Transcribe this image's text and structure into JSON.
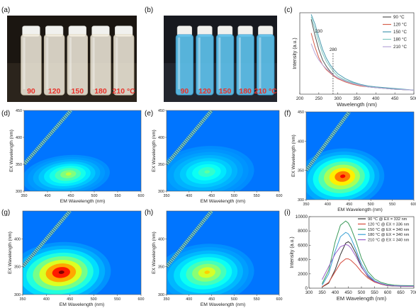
{
  "panel_labels": [
    "(a)",
    "(b)",
    "(c)",
    "(d)",
    "(e)",
    "(f)",
    "(g)",
    "(h)",
    "(i)"
  ],
  "photo_a": {
    "vial_labels": [
      "90",
      "120",
      "150",
      "180",
      "210 °C"
    ],
    "label_color": "#e8322a",
    "liquid_color": "#efe4cf",
    "background_color": "#1b1611"
  },
  "photo_b": {
    "vial_labels": [
      "90",
      "120",
      "150",
      "180",
      "210 °C"
    ],
    "label_color": "#e8322a",
    "liquid_color": "#41b6ea",
    "background_color": "#17191f"
  },
  "chart_data": [
    {
      "id": "c",
      "type": "line",
      "xlabel": "Wavelength (nm)",
      "ylabel": "Intensity (a.u.)",
      "xlim": [
        200,
        500
      ],
      "xticks": [
        "200",
        "250",
        "300",
        "350",
        "400",
        "450",
        "500"
      ],
      "annotations": [
        "230",
        "280"
      ],
      "series": [
        {
          "name": "90 °C",
          "color": "#555555",
          "x": [
            230,
            240,
            250,
            260,
            270,
            280,
            290,
            300,
            320,
            340,
            360,
            380,
            400,
            450,
            500
          ],
          "y": [
            0.92,
            0.72,
            0.55,
            0.42,
            0.34,
            0.28,
            0.23,
            0.2,
            0.16,
            0.13,
            0.11,
            0.09,
            0.08,
            0.06,
            0.05
          ]
        },
        {
          "name": "120 °C",
          "color": "#d6604d",
          "x": [
            230,
            240,
            250,
            260,
            270,
            280,
            290,
            300,
            320,
            340,
            360,
            380,
            400,
            450,
            500
          ],
          "y": [
            0.75,
            0.58,
            0.45,
            0.36,
            0.3,
            0.26,
            0.22,
            0.19,
            0.15,
            0.12,
            0.1,
            0.09,
            0.08,
            0.06,
            0.05
          ]
        },
        {
          "name": "150 °C",
          "color": "#4a9ab0",
          "x": [
            230,
            240,
            250,
            260,
            270,
            280,
            290,
            300,
            320,
            340,
            360,
            380,
            400,
            450,
            500
          ],
          "y": [
            0.98,
            0.86,
            0.7,
            0.55,
            0.44,
            0.36,
            0.3,
            0.25,
            0.19,
            0.15,
            0.12,
            0.1,
            0.09,
            0.07,
            0.05
          ]
        },
        {
          "name": "180 °C",
          "color": "#7fc8c0",
          "x": [
            230,
            240,
            250,
            260,
            270,
            280,
            290,
            300,
            320,
            340,
            360,
            380,
            400,
            450,
            500
          ],
          "y": [
            0.95,
            0.8,
            0.64,
            0.5,
            0.4,
            0.33,
            0.27,
            0.22,
            0.17,
            0.14,
            0.11,
            0.09,
            0.08,
            0.06,
            0.05
          ]
        },
        {
          "name": "210 °C",
          "color": "#b8a6d9",
          "x": [
            230,
            240,
            250,
            260,
            270,
            280,
            290,
            300,
            320,
            340,
            360,
            380,
            400,
            450,
            500
          ],
          "y": [
            0.62,
            0.5,
            0.42,
            0.36,
            0.31,
            0.27,
            0.23,
            0.2,
            0.16,
            0.13,
            0.11,
            0.09,
            0.08,
            0.06,
            0.05
          ]
        }
      ]
    },
    {
      "id": "d",
      "type": "heatmap",
      "xlabel": "EM Wavelength (nm)",
      "ylabel": "EX Wavelength (nm)",
      "xlim": [
        350,
        600
      ],
      "ylim": [
        300,
        450
      ],
      "xticks": [
        "350",
        "400",
        "450",
        "500",
        "550",
        "600"
      ],
      "yticks": [
        "300",
        "350",
        "400",
        "450"
      ],
      "peak_em": 445,
      "peak_ex": 332,
      "peak_level": 0.55,
      "spread_em": 55,
      "spread_ex": 22
    },
    {
      "id": "e",
      "type": "heatmap",
      "xlabel": "EM Wavelength (nm)",
      "ylabel": "EX Wavelength (nm)",
      "xlim": [
        350,
        600
      ],
      "ylim": [
        300,
        450
      ],
      "xticks": [
        "350",
        "400",
        "450",
        "500",
        "550",
        "600"
      ],
      "yticks": [
        "300",
        "350",
        "400",
        "450"
      ],
      "peak_em": 440,
      "peak_ex": 336,
      "peak_level": 0.45,
      "spread_em": 65,
      "spread_ex": 30
    },
    {
      "id": "f",
      "type": "heatmap",
      "xlabel": "EM Wavelength (nm)",
      "ylabel": "EX Wavelength (nm)",
      "xlim": [
        350,
        600
      ],
      "ylim": [
        300,
        450
      ],
      "xticks": [
        "350",
        "400",
        "450",
        "500",
        "550",
        "600"
      ],
      "yticks": [
        "300",
        "350",
        "400",
        "450"
      ],
      "peak_em": 435,
      "peak_ex": 340,
      "peak_level": 0.88,
      "spread_em": 60,
      "spread_ex": 30
    },
    {
      "id": "g",
      "type": "heatmap",
      "xlabel": "EM Wavelength (nm)",
      "ylabel": "EX Wavelength (nm)",
      "xlim": [
        350,
        600
      ],
      "ylim": [
        300,
        450
      ],
      "xticks": [
        "350",
        "400",
        "450",
        "500",
        "550",
        "600"
      ],
      "yticks": [
        "300",
        "350",
        "400"
      ],
      "peak_em": 432,
      "peak_ex": 340,
      "peak_level": 1.0,
      "spread_em": 65,
      "spread_ex": 34
    },
    {
      "id": "h",
      "type": "heatmap",
      "xlabel": "EM Wavelength (nm)",
      "ylabel": "EX Wavelength (nm)",
      "xlim": [
        350,
        600
      ],
      "ylim": [
        300,
        450
      ],
      "xticks": [
        "350",
        "400",
        "450",
        "500",
        "550",
        "600"
      ],
      "yticks": [
        "300",
        "350",
        "400"
      ],
      "peak_em": 440,
      "peak_ex": 340,
      "peak_level": 0.66,
      "spread_em": 65,
      "spread_ex": 32
    },
    {
      "id": "i",
      "type": "line",
      "xlabel": "EM Wavelength (nm)",
      "ylabel": "Intensity (a.u.)",
      "xlim": [
        300,
        700
      ],
      "ylim": [
        0,
        10000
      ],
      "xticks": [
        "300",
        "350",
        "400",
        "450",
        "500",
        "550",
        "600",
        "650",
        "700"
      ],
      "yticks": [
        "0",
        "2000",
        "4000",
        "6000",
        "8000",
        "10000"
      ],
      "series": [
        {
          "name": "90 °C @ EX = 332 nm",
          "color": "#333333",
          "x": [
            350,
            375,
            400,
            420,
            440,
            450,
            460,
            480,
            500,
            525,
            550,
            575,
            600,
            625,
            650,
            675,
            700
          ],
          "y": [
            150,
            700,
            2600,
            4700,
            6300,
            6500,
            6200,
            4800,
            3000,
            1600,
            900,
            550,
            350,
            300,
            280,
            260,
            250
          ]
        },
        {
          "name": "120 °C @ EX = 336 nm",
          "color": "#d64b3c",
          "x": [
            350,
            375,
            400,
            420,
            440,
            450,
            460,
            480,
            500,
            525,
            550,
            575,
            600,
            625,
            650,
            675,
            700
          ],
          "y": [
            200,
            800,
            2300,
            3500,
            4100,
            4100,
            3900,
            3200,
            2300,
            1400,
            850,
            550,
            380,
            320,
            290,
            270,
            260
          ]
        },
        {
          "name": "150 °C @ EX = 340 nm",
          "color": "#3b9a5a",
          "x": [
            350,
            375,
            400,
            420,
            440,
            450,
            460,
            480,
            500,
            525,
            550,
            575,
            600,
            625,
            650,
            675,
            700
          ],
          "y": [
            600,
            2500,
            6500,
            8800,
            9400,
            9100,
            8400,
            6500,
            4200,
            2300,
            1300,
            800,
            550,
            420,
            380,
            360,
            350
          ]
        },
        {
          "name": "180 °C @ EX = 340 nm",
          "color": "#39a0d4",
          "x": [
            350,
            375,
            400,
            420,
            440,
            450,
            460,
            480,
            500,
            525,
            550,
            575,
            600,
            625,
            650,
            675,
            700
          ],
          "y": [
            400,
            2000,
            5200,
            7200,
            7800,
            7600,
            7000,
            5300,
            3400,
            1900,
            1050,
            650,
            430,
            350,
            320,
            300,
            290
          ]
        },
        {
          "name": "210 °C @ EX = 340 nm",
          "color": "#9a5fc6",
          "x": [
            350,
            375,
            400,
            420,
            440,
            450,
            460,
            480,
            500,
            525,
            550,
            575,
            600,
            625,
            650,
            675,
            700
          ],
          "y": [
            1200,
            3000,
            4800,
            5800,
            6100,
            6000,
            5600,
            4400,
            2900,
            1700,
            950,
            600,
            400,
            320,
            290,
            270,
            260
          ]
        }
      ]
    }
  ]
}
